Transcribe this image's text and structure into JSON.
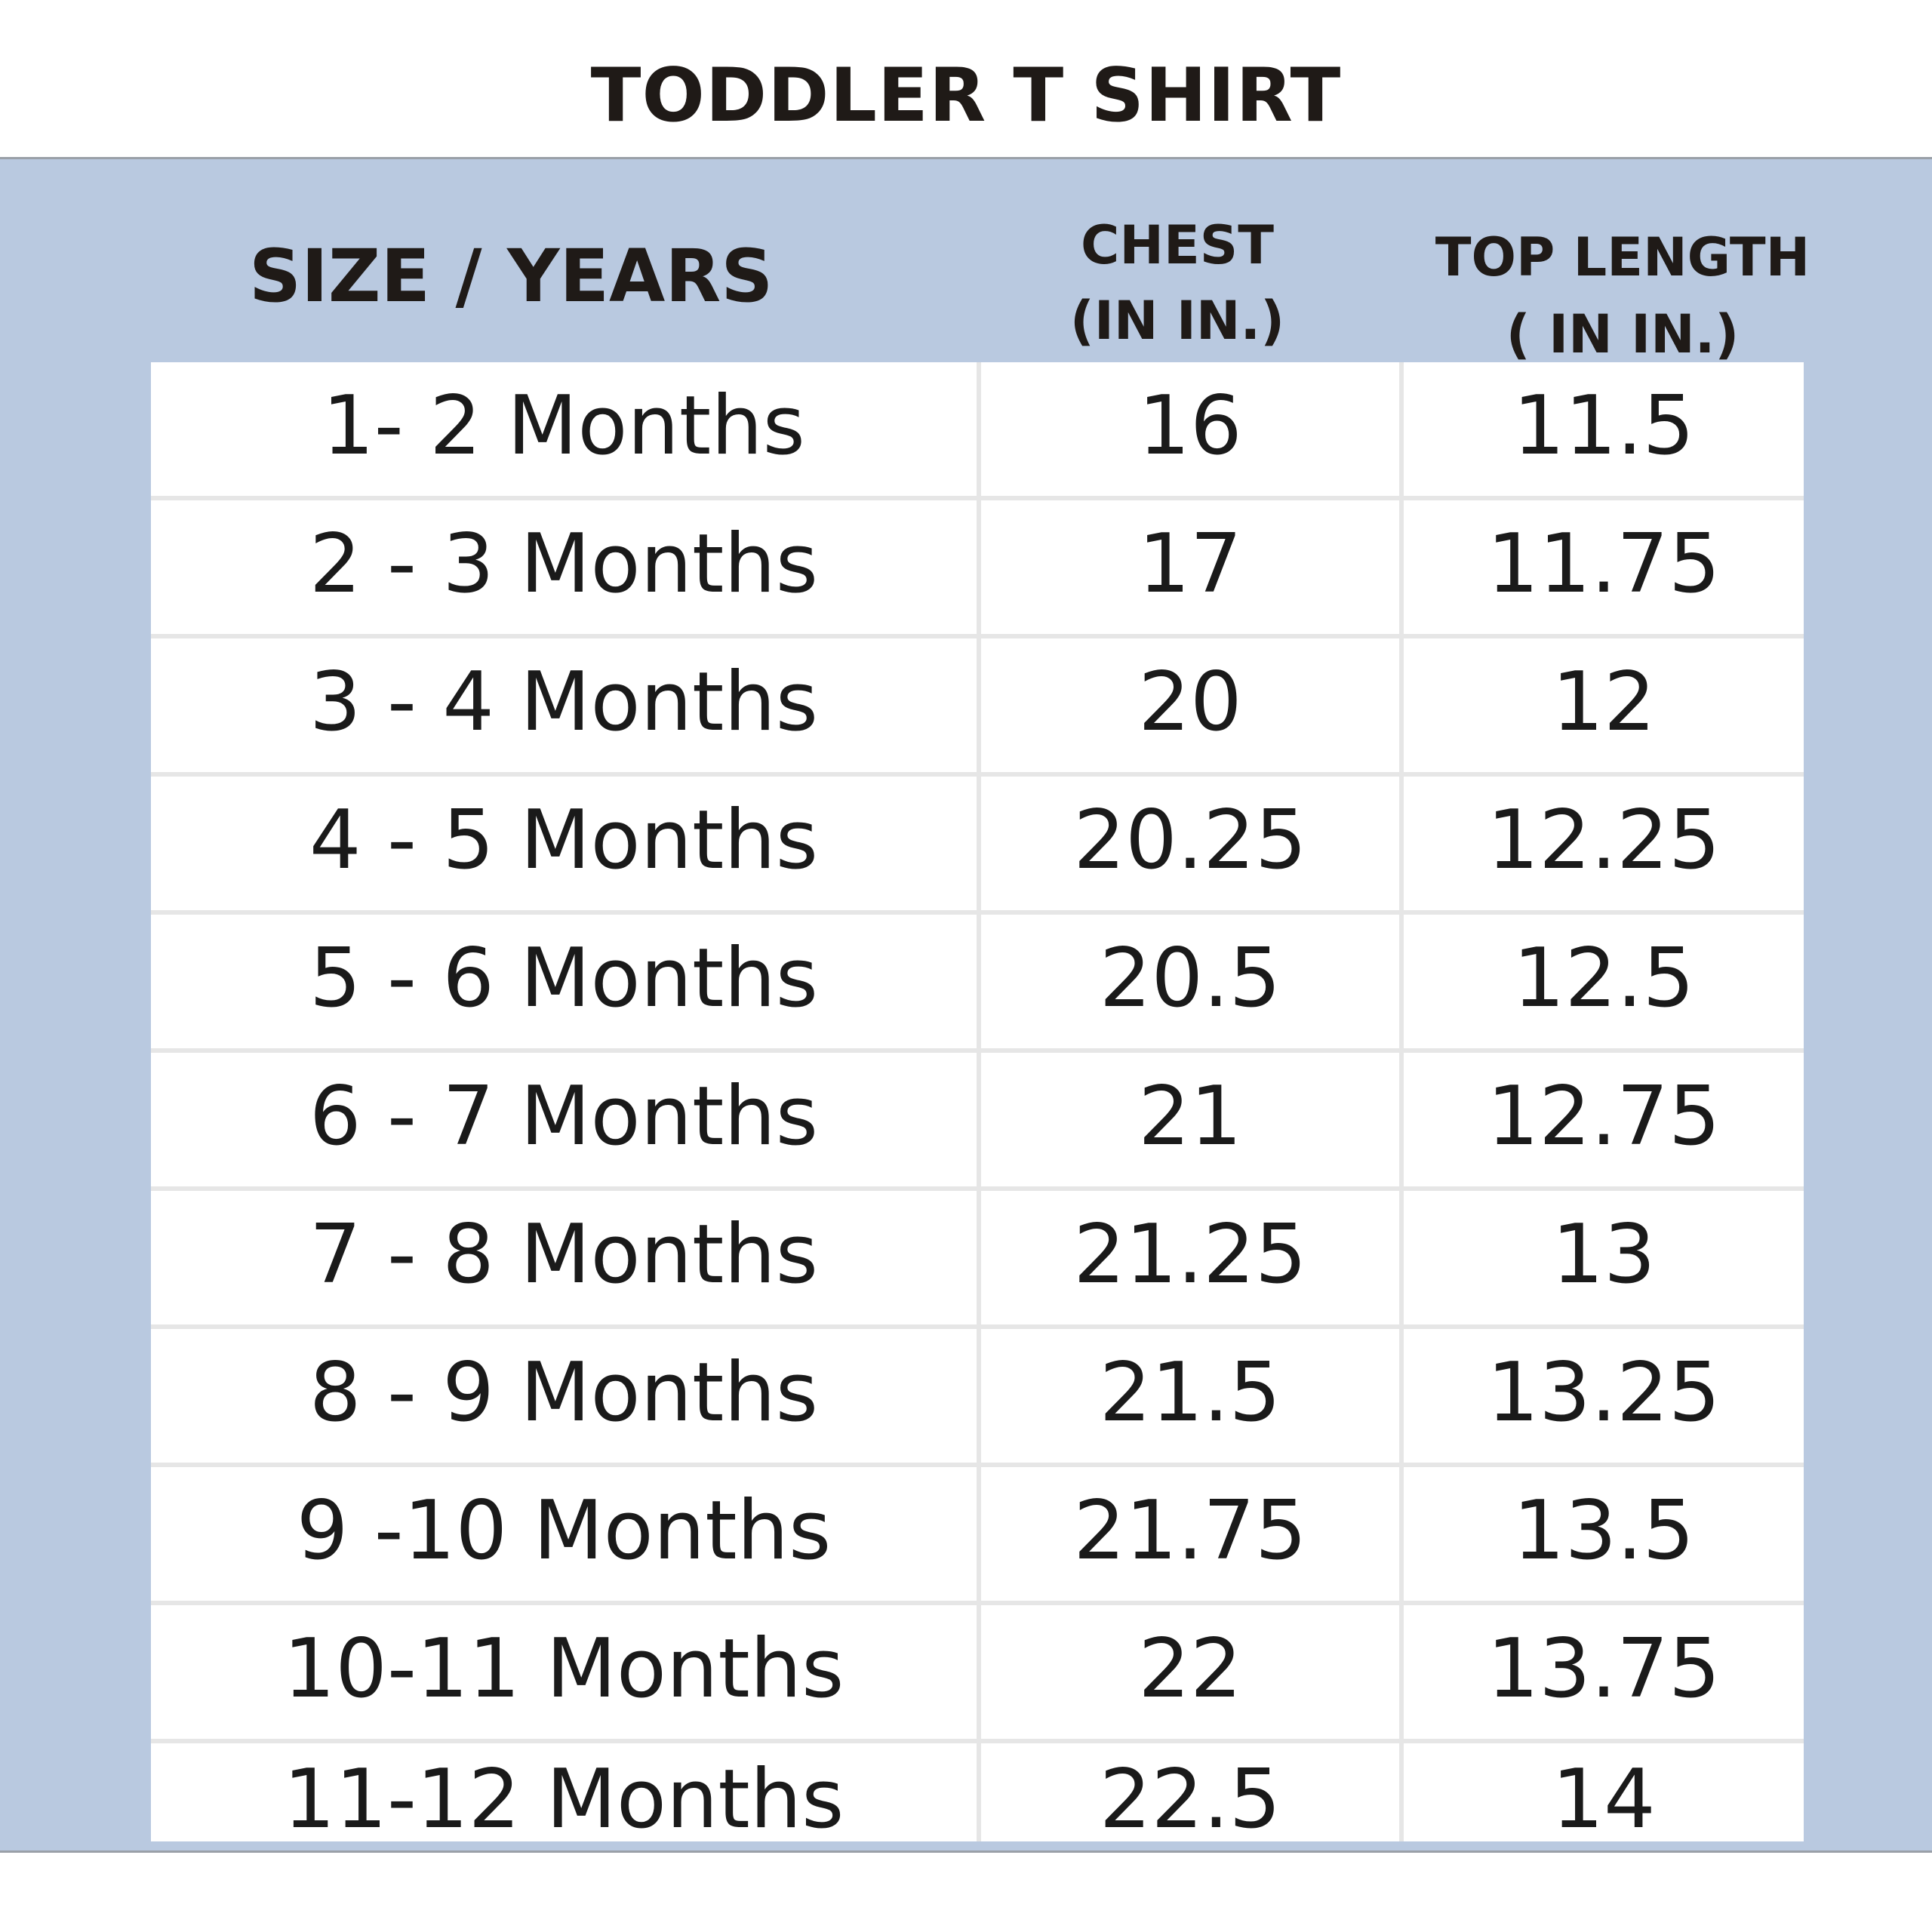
{
  "title": "TODDLER T SHIRT",
  "header": {
    "size": "SIZE / YEARS",
    "chest_line1": "CHEST",
    "chest_line2": "(IN IN.)",
    "length_line1": "TOP LENGTH",
    "length_line2": "( IN IN.)"
  },
  "rows": [
    {
      "size": "1- 2 Months",
      "chest": "16",
      "length": "11.5"
    },
    {
      "size": "2 - 3 Months",
      "chest": "17",
      "length": "11.75"
    },
    {
      "size": "3 - 4 Months",
      "chest": "20",
      "length": "12"
    },
    {
      "size": "4 - 5 Months",
      "chest": "20.25",
      "length": "12.25"
    },
    {
      "size": "5 - 6 Months",
      "chest": "20.5",
      "length": "12.5"
    },
    {
      "size": "6 - 7 Months",
      "chest": "21",
      "length": "12.75"
    },
    {
      "size": "7 - 8 Months",
      "chest": "21.25",
      "length": "13"
    },
    {
      "size": "8 - 9 Months",
      "chest": "21.5",
      "length": "13.25"
    },
    {
      "size": "9 -10 Months",
      "chest": "21.75",
      "length": "13.5"
    },
    {
      "size": "10-11 Months",
      "chest": "22",
      "length": "13.75"
    },
    {
      "size": "11-12 Months",
      "chest": "22.5",
      "length": "14"
    }
  ],
  "colors": {
    "panel": "#b9c9e0",
    "text": "#1f1a17",
    "grid": "#e6e6e6"
  }
}
